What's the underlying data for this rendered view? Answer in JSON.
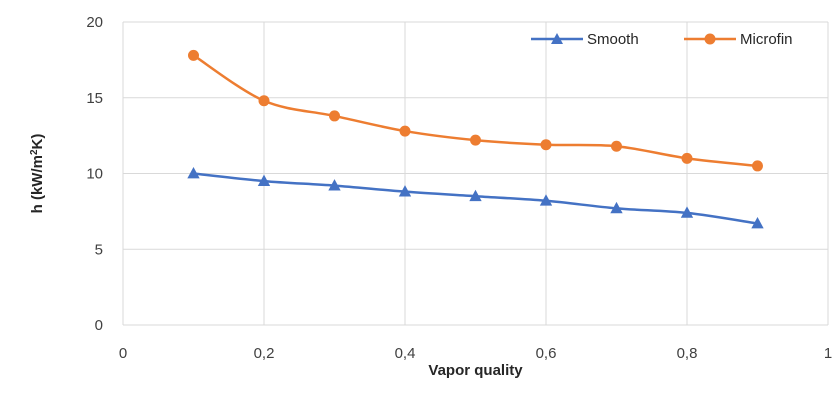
{
  "chart_data": {
    "type": "line",
    "title": "",
    "xlabel": "Vapor quality",
    "ylabel": "h (kW/m²K)",
    "ylabel_parts": {
      "pre": "h (kW/m",
      "sup": "2",
      "post": "K)"
    },
    "xlim": [
      0,
      1
    ],
    "ylim": [
      0,
      20
    ],
    "x_ticks": [
      0,
      0.2,
      0.4,
      0.6,
      0.8,
      1
    ],
    "x_tick_labels": [
      "0",
      "0,2",
      "0,4",
      "0,6",
      "0,8",
      "1"
    ],
    "y_ticks": [
      0,
      5,
      10,
      15,
      20
    ],
    "y_tick_labels": [
      "0",
      "5",
      "10",
      "15",
      "20"
    ],
    "grid": true,
    "legend_position": "top-right",
    "x": [
      0.1,
      0.2,
      0.3,
      0.4,
      0.5,
      0.6,
      0.7,
      0.8,
      0.9
    ],
    "series": [
      {
        "name": "Smooth",
        "marker": "triangle",
        "color": "#4472c4",
        "values": [
          10.0,
          9.5,
          9.2,
          8.8,
          8.5,
          8.2,
          7.7,
          7.4,
          6.7
        ]
      },
      {
        "name": "Microfin",
        "marker": "circle",
        "color": "#ed7d31",
        "values": [
          17.8,
          14.8,
          13.8,
          12.8,
          12.2,
          11.9,
          11.8,
          11.0,
          10.5
        ]
      }
    ]
  }
}
